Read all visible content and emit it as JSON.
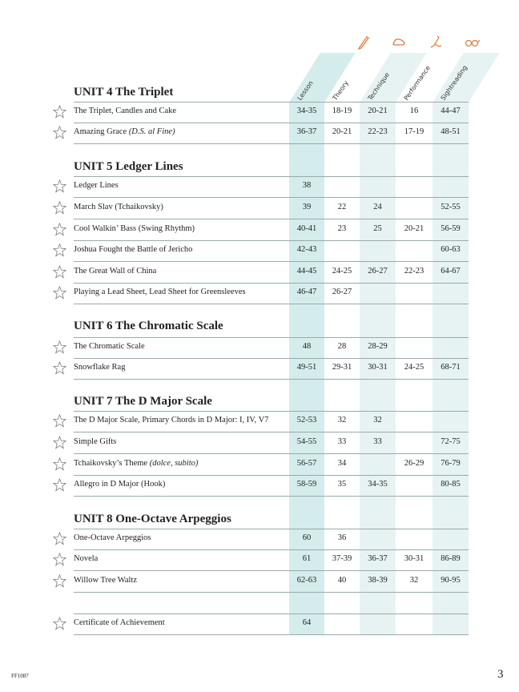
{
  "columns": [
    {
      "label": "Lesson",
      "shade": "#d5ecec",
      "icon": ""
    },
    {
      "label": "Theory",
      "shade": "",
      "icon": "pencil-icon"
    },
    {
      "label": "Technique",
      "shade": "#e7f3f3",
      "icon": "hand-icon"
    },
    {
      "label": "Performance",
      "shade": "",
      "icon": "performer-icon"
    },
    {
      "label": "Sightreading",
      "shade": "#e7f3f3",
      "icon": "glasses-icon"
    }
  ],
  "colors": {
    "icon": "#e07a3a",
    "line": "#9aa"
  },
  "units": [
    {
      "title": "UNIT 4  The Triplet",
      "rows": [
        {
          "title": "The Triplet, Candles and Cake",
          "values": [
            "34-35",
            "18-19",
            "20-21",
            "16",
            "44-47"
          ]
        },
        {
          "title": "Amazing Grace",
          "title_italic": "(D.S. al Fine)",
          "values": [
            "36-37",
            "20-21",
            "22-23",
            "17-19",
            "48-51"
          ]
        }
      ]
    },
    {
      "title": "UNIT 5  Ledger Lines",
      "rows": [
        {
          "title": "Ledger Lines",
          "values": [
            "38",
            "",
            "",
            "",
            ""
          ]
        },
        {
          "title": "March Slav (Tchaikovsky)",
          "values": [
            "39",
            "22",
            "24",
            "",
            "52-55"
          ]
        },
        {
          "title": "Cool Walkin’ Bass (Swing Rhythm)",
          "values": [
            "40-41",
            "23",
            "25",
            "20-21",
            "56-59"
          ]
        },
        {
          "title": "Joshua Fought the Battle of Jericho",
          "values": [
            "42-43",
            "",
            "",
            "",
            "60-63"
          ]
        },
        {
          "title": "The Great Wall of China",
          "values": [
            "44-45",
            "24-25",
            "26-27",
            "22-23",
            "64-67"
          ]
        },
        {
          "title": "Playing a Lead Sheet, Lead Sheet for Greensleeves",
          "values": [
            "46-47",
            "26-27",
            "",
            "",
            ""
          ]
        }
      ]
    },
    {
      "title": "UNIT 6  The Chromatic Scale",
      "rows": [
        {
          "title": "The Chromatic Scale",
          "values": [
            "48",
            "28",
            "28-29",
            "",
            ""
          ]
        },
        {
          "title": "Snowflake Rag",
          "values": [
            "49-51",
            "29-31",
            "30-31",
            "24-25",
            "68-71"
          ]
        }
      ]
    },
    {
      "title": "UNIT 7  The D Major Scale",
      "rows": [
        {
          "title": "The D Major Scale, Primary Chords in D Major: I, IV, V7",
          "values": [
            "52-53",
            "32",
            "32",
            "",
            ""
          ]
        },
        {
          "title": "Simple Gifts",
          "values": [
            "54-55",
            "33",
            "33",
            "",
            "72-75"
          ]
        },
        {
          "title": "Tchaikovsky’s Theme",
          "title_italic": "(dolce, subito)",
          "values": [
            "56-57",
            "34",
            "",
            "26-29",
            "76-79"
          ]
        },
        {
          "title": "Allegro in D Major (Hook)",
          "values": [
            "58-59",
            "35",
            "34-35",
            "",
            "80-85"
          ]
        }
      ]
    },
    {
      "title": "UNIT 8  One-Octave Arpeggios",
      "rows": [
        {
          "title": "One-Octave Arpeggios",
          "values": [
            "60",
            "36",
            "",
            "",
            ""
          ]
        },
        {
          "title": "Novela",
          "values": [
            "61",
            "37-39",
            "36-37",
            "30-31",
            "86-89"
          ]
        },
        {
          "title": "Willow Tree Waltz",
          "values": [
            "62-63",
            "40",
            "38-39",
            "32",
            "90-95"
          ]
        }
      ]
    }
  ],
  "certificate": {
    "title": "Certificate of Achievement",
    "values": [
      "64",
      "",
      "",
      "",
      ""
    ]
  },
  "footer": {
    "code": "FF1087",
    "page": "3"
  }
}
